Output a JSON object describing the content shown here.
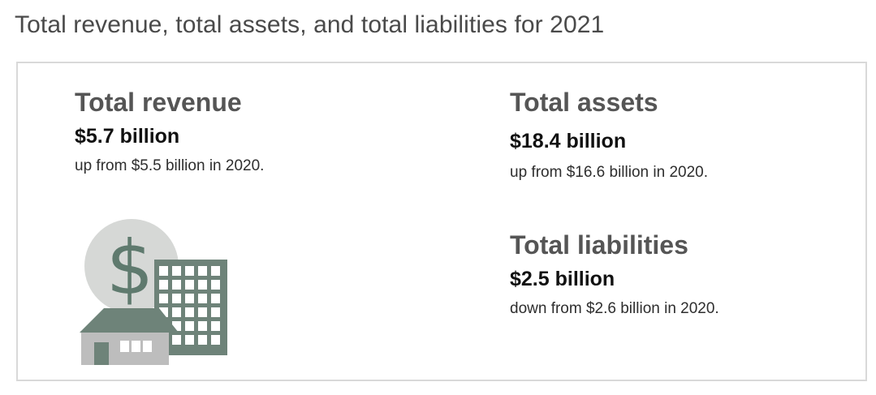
{
  "title": "Total revenue, total assets, and total liabilities for 2021",
  "stats": {
    "revenue": {
      "label": "Total revenue",
      "value": "$5.7 billion",
      "note": "up from $5.5 billion in 2020."
    },
    "assets": {
      "label": "Total assets",
      "value": "$18.4 billion",
      "note": "up from $16.6 billion in 2020."
    },
    "liabilities": {
      "label": "Total liabilities",
      "value": "$2.5 billion",
      "note": "down from $2.6 billion in 2020."
    }
  },
  "illustration": {
    "icons": [
      "dollar-coin-icon",
      "office-building-icon",
      "house-icon"
    ],
    "colors": {
      "coin": "#d6d8d6",
      "dollar_sign": "#5f7a6e",
      "building": "#6e8379",
      "building_windows": "#ffffff",
      "house_roof": "#6e8379",
      "house_wall": "#bdbdbd",
      "house_door": "#6e8379"
    }
  }
}
